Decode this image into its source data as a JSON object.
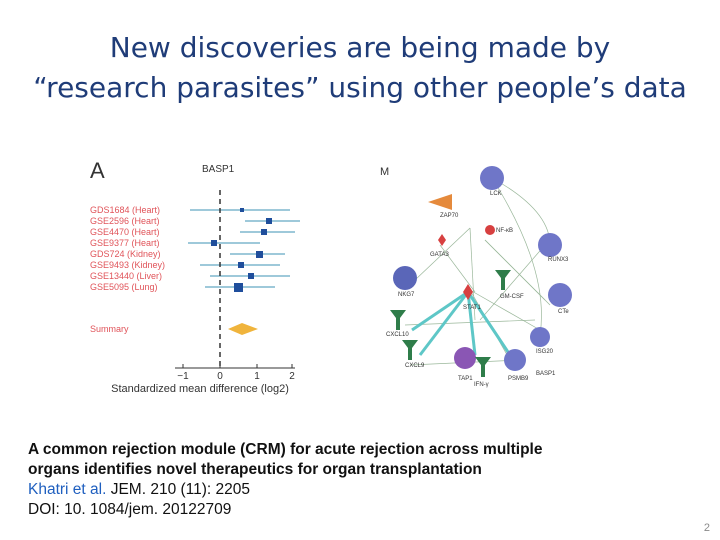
{
  "slide": {
    "title_line1": "New discoveries are being made by",
    "title_line2": "“research parasites” using other people’s data",
    "page_number": "2"
  },
  "forest_plot": {
    "panel_label": "A",
    "gene": "BASP1",
    "studies": [
      "GDS1684 (Heart)",
      "GSE2596 (Heart)",
      "GSE4470 (Heart)",
      "GSE9377 (Heart)",
      "GDS724 (Kidney)",
      "GSE9493 (Kidney)",
      "GSE13440 (Liver)",
      "GSE5095 (Lung)"
    ],
    "summary_label": "Summary",
    "x_ticks": [
      "−1",
      "0",
      "1",
      "2"
    ],
    "x_label": "Standardized mean difference (log2)",
    "study_color": "#e0545a",
    "marker_color": "#1f4e9c"
  },
  "network": {
    "panel_label": "M",
    "nodes": [
      "LCK",
      "ZAP70",
      "NF-κB",
      "GATA3",
      "RUNX3",
      "NKG7",
      "GM-CSF",
      "CTe",
      "STAT1",
      "CXCL10",
      "ISG20",
      "CXCL9",
      "BASP1",
      "TAP1",
      "IFN-γ",
      "PSMB9"
    ]
  },
  "caption": {
    "line1": "A common rejection module (CRM) for acute rejection across multiple",
    "line2": "organs identifies novel therapeutics for organ transplantation",
    "authors": "Khatri et al.",
    "journal": " JEM. 210 (11): 2205",
    "doi": "DOI: 10. 1084/jem. 20122709"
  }
}
